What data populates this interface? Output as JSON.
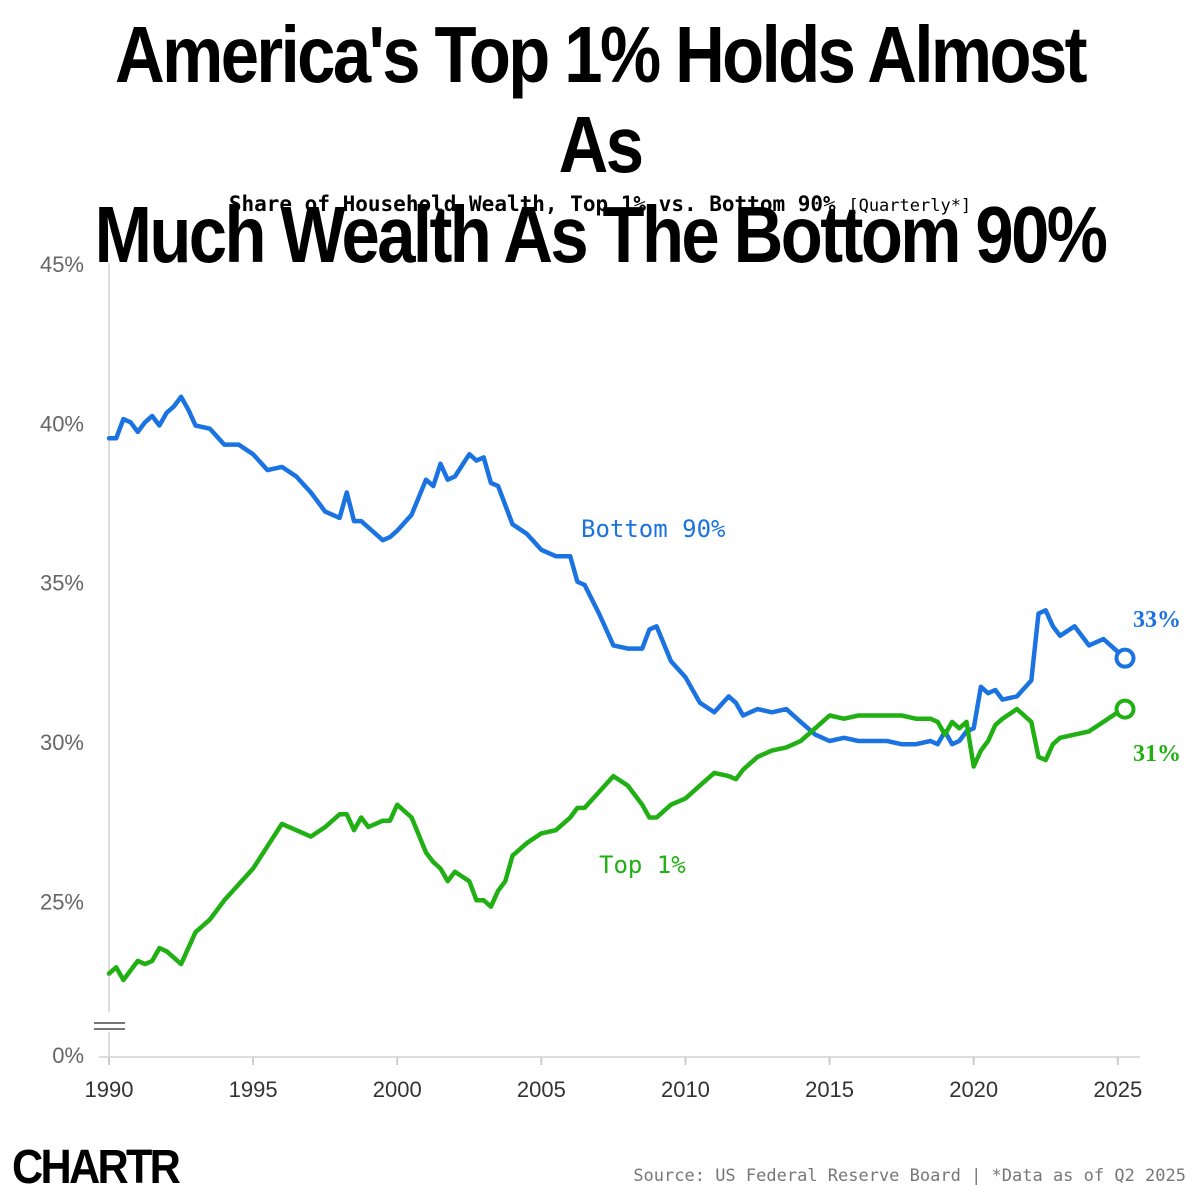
{
  "header": {
    "title_line1": "America's Top 1% Holds Almost As",
    "title_line2": "Much Wealth As The Bottom 90%",
    "subtitle": "Share of Household Wealth, Top 1% vs. Bottom 90%",
    "subtitle_note": "[Quarterly*]"
  },
  "footer": {
    "logo": "CHARTR",
    "source": "Source: US Federal Reserve Board | *Data as of Q2 2025"
  },
  "chart_data": {
    "type": "line",
    "title": "America's Top 1% Holds Almost As Much Wealth As The Bottom 90%",
    "subtitle": "Share of Household Wealth, Top 1% vs. Bottom 90% [Quarterly*]",
    "xlabel": "",
    "ylabel": "",
    "xlim": [
      1990,
      2025.25
    ],
    "ylim": [
      0,
      45
    ],
    "axis_break": "between 0% and 22%",
    "y_ticks": [
      0,
      25,
      30,
      35,
      40,
      45
    ],
    "y_tick_labels": [
      "0%",
      "25%",
      "30%",
      "35%",
      "40%",
      "45%"
    ],
    "x_ticks": [
      1990,
      1995,
      2000,
      2005,
      2010,
      2015,
      2020,
      2025
    ],
    "x_tick_labels": [
      "1990",
      "1995",
      "2000",
      "2005",
      "2010",
      "2015",
      "2020",
      "2025"
    ],
    "grid": false,
    "series": [
      {
        "name": "Bottom 90%",
        "label": "Bottom 90%",
        "end_label": "33%",
        "color": "#1a73e0",
        "x": [
          1990.0,
          1990.25,
          1990.5,
          1990.75,
          1991.0,
          1991.25,
          1991.5,
          1991.75,
          1992.0,
          1992.25,
          1992.5,
          1992.75,
          1993.0,
          1993.5,
          1994.0,
          1994.5,
          1995.0,
          1995.5,
          1996.0,
          1996.5,
          1997.0,
          1997.5,
          1998.0,
          1998.25,
          1998.5,
          1998.75,
          1999.0,
          1999.5,
          1999.75,
          2000.0,
          2000.5,
          2001.0,
          2001.25,
          2001.5,
          2001.75,
          2002.0,
          2002.5,
          2002.75,
          2003.0,
          2003.25,
          2003.5,
          2003.75,
          2004.0,
          2004.5,
          2005.0,
          2005.5,
          2006.0,
          2006.25,
          2006.5,
          2007.0,
          2007.5,
          2008.0,
          2008.5,
          2008.75,
          2009.0,
          2009.5,
          2010.0,
          2010.5,
          2011.0,
          2011.5,
          2011.75,
          2012.0,
          2012.5,
          2013.0,
          2013.5,
          2014.0,
          2014.5,
          2015.0,
          2015.5,
          2016.0,
          2016.5,
          2017.0,
          2017.5,
          2018.0,
          2018.5,
          2018.75,
          2019.0,
          2019.25,
          2019.5,
          2019.75,
          2020.0,
          2020.25,
          2020.5,
          2020.75,
          2021.0,
          2021.5,
          2022.0,
          2022.25,
          2022.5,
          2022.75,
          2023.0,
          2023.5,
          2024.0,
          2024.5,
          2025.0,
          2025.25
        ],
        "values": [
          39.5,
          39.5,
          40.1,
          40.0,
          39.7,
          40.0,
          40.2,
          39.9,
          40.3,
          40.5,
          40.8,
          40.4,
          39.9,
          39.8,
          39.3,
          39.3,
          39.0,
          38.5,
          38.6,
          38.3,
          37.8,
          37.2,
          37.0,
          37.8,
          36.9,
          36.9,
          36.7,
          36.3,
          36.4,
          36.6,
          37.1,
          38.2,
          38.0,
          38.7,
          38.2,
          38.3,
          39.0,
          38.8,
          38.9,
          38.1,
          38.0,
          37.4,
          36.8,
          36.5,
          36.0,
          35.8,
          35.8,
          35.0,
          34.9,
          34.0,
          33.0,
          32.9,
          32.9,
          33.5,
          33.6,
          32.5,
          32.0,
          31.2,
          30.9,
          31.4,
          31.2,
          30.8,
          31.0,
          30.9,
          31.0,
          30.6,
          30.2,
          30.0,
          30.1,
          30.0,
          30.0,
          30.0,
          29.9,
          29.9,
          30.0,
          29.9,
          30.3,
          29.9,
          30.0,
          30.3,
          30.4,
          31.7,
          31.5,
          31.6,
          31.3,
          31.4,
          31.9,
          34.0,
          34.1,
          33.6,
          33.3,
          33.6,
          33.0,
          33.2,
          32.8,
          32.6
        ]
      },
      {
        "name": "Top 1%",
        "label": "Top 1%",
        "end_label": "31%",
        "color": "#20b014",
        "x": [
          1990.0,
          1990.25,
          1990.5,
          1990.75,
          1991.0,
          1991.25,
          1991.5,
          1991.75,
          1992.0,
          1992.25,
          1992.5,
          1992.75,
          1993.0,
          1993.5,
          1994.0,
          1994.5,
          1995.0,
          1995.5,
          1996.0,
          1996.5,
          1997.0,
          1997.5,
          1998.0,
          1998.25,
          1998.5,
          1998.75,
          1999.0,
          1999.5,
          1999.75,
          2000.0,
          2000.5,
          2001.0,
          2001.25,
          2001.5,
          2001.75,
          2002.0,
          2002.5,
          2002.75,
          2003.0,
          2003.25,
          2003.5,
          2003.75,
          2004.0,
          2004.5,
          2005.0,
          2005.5,
          2006.0,
          2006.25,
          2006.5,
          2007.0,
          2007.5,
          2008.0,
          2008.5,
          2008.75,
          2009.0,
          2009.5,
          2010.0,
          2010.5,
          2011.0,
          2011.5,
          2011.75,
          2012.0,
          2012.5,
          2013.0,
          2013.5,
          2014.0,
          2014.5,
          2015.0,
          2015.5,
          2016.0,
          2016.5,
          2017.0,
          2017.5,
          2018.0,
          2018.5,
          2018.75,
          2019.0,
          2019.25,
          2019.5,
          2019.75,
          2020.0,
          2020.25,
          2020.5,
          2020.75,
          2021.0,
          2021.5,
          2022.0,
          2022.25,
          2022.5,
          2022.75,
          2023.0,
          2023.5,
          2024.0,
          2024.5,
          2025.0,
          2025.25
        ],
        "values": [
          22.7,
          22.9,
          22.5,
          22.8,
          23.1,
          23.0,
          23.1,
          23.5,
          23.4,
          23.2,
          23.0,
          23.5,
          24.0,
          24.4,
          25.0,
          25.5,
          26.0,
          26.7,
          27.4,
          27.2,
          27.0,
          27.3,
          27.7,
          27.7,
          27.2,
          27.6,
          27.3,
          27.5,
          27.5,
          28.0,
          27.6,
          26.5,
          26.2,
          26.0,
          25.6,
          25.9,
          25.6,
          25.0,
          25.0,
          24.8,
          25.3,
          25.6,
          26.4,
          26.8,
          27.1,
          27.2,
          27.6,
          27.9,
          27.9,
          28.4,
          28.9,
          28.6,
          28.0,
          27.6,
          27.6,
          28.0,
          28.2,
          28.6,
          29.0,
          28.9,
          28.8,
          29.1,
          29.5,
          29.7,
          29.8,
          30.0,
          30.4,
          30.8,
          30.7,
          30.8,
          30.8,
          30.8,
          30.8,
          30.7,
          30.7,
          30.6,
          30.2,
          30.6,
          30.4,
          30.6,
          29.2,
          29.7,
          30.0,
          30.5,
          30.7,
          31.0,
          30.6,
          29.5,
          29.4,
          29.9,
          30.1,
          30.2,
          30.3,
          30.6,
          30.9,
          31.0
        ]
      }
    ]
  }
}
